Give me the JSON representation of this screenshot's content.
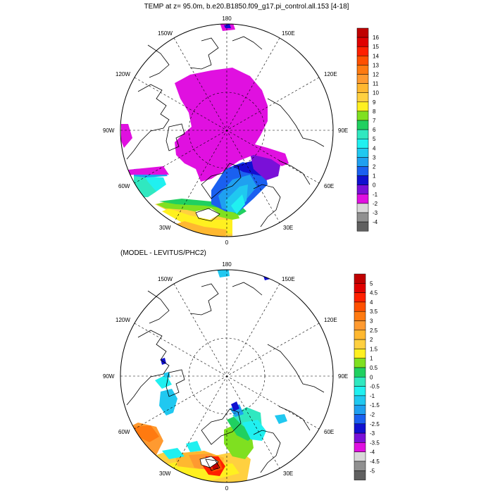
{
  "title": "TEMP at z=  95.0m, b.e20.B1850.f09_g17.pi_control.all.153 [4-18]",
  "diff_title": "(MODEL - LEVITUS/PHC2)",
  "longitude_labels": {
    "top": "180",
    "bottom": "0",
    "left": "90W",
    "right": "90E",
    "upper_left_1": "150W",
    "upper_left_2": "120W",
    "upper_right_1": "150E",
    "upper_right_2": "120E",
    "lower_left_1": "60W",
    "lower_left_2": "30W",
    "lower_right_1": "60E",
    "lower_right_2": "30E"
  },
  "colorbar_top": {
    "labels": [
      "16",
      "15",
      "14",
      "13",
      "12",
      "11",
      "10",
      "9",
      "8",
      "7",
      "6",
      "5",
      "4",
      "3",
      "2",
      "1",
      "0",
      "-1",
      "-2",
      "-3",
      "-4"
    ],
    "colors": [
      "#c00000",
      "#e00000",
      "#ff2000",
      "#ff5000",
      "#ff7a10",
      "#ff9a30",
      "#ffb830",
      "#ffd040",
      "#fff020",
      "#7fe020",
      "#20d060",
      "#30e8c0",
      "#20f0f0",
      "#20c8f0",
      "#1fa0f0",
      "#1a60f0",
      "#1010d0",
      "#7a10d8",
      "#e010e0",
      "#d8d8d8",
      "#909090",
      "#606060"
    ]
  },
  "colorbar_bottom": {
    "labels": [
      "5",
      "4.5",
      "4",
      "3.5",
      "3",
      "2.5",
      "2",
      "1.5",
      "1",
      "0.5",
      "0",
      "-0.5",
      "-1",
      "-1.5",
      "-2",
      "-2.5",
      "-3",
      "-3.5",
      "-4",
      "-4.5",
      "-5"
    ],
    "colors": [
      "#c00000",
      "#e00000",
      "#ff2000",
      "#ff5000",
      "#ff7a10",
      "#ff9a30",
      "#ffb830",
      "#ffd040",
      "#fff020",
      "#7fe020",
      "#20d060",
      "#30e8c0",
      "#20f0f0",
      "#20c8f0",
      "#1fa0f0",
      "#1a60f0",
      "#1010d0",
      "#7a10d8",
      "#e010e0",
      "#d8d8d8",
      "#909090",
      "#606060"
    ]
  },
  "field_colors": {
    "ice_magenta": "#e010e0",
    "cold_purple": "#7a10d8",
    "deep_blue": "#1010d0",
    "blue": "#1a60f0",
    "mid_blue": "#1fa0f0",
    "light_blue": "#20c8f0",
    "cyan": "#20f0f0",
    "aqua": "#30e8c0",
    "green": "#20d060",
    "lime": "#7fe020",
    "yellow": "#fff020",
    "gold": "#ffd040",
    "orange_light": "#ffb830",
    "orange": "#ff9a30",
    "orange_dark": "#ff7a10",
    "red_orange": "#ff5000",
    "red": "#ff2000"
  }
}
